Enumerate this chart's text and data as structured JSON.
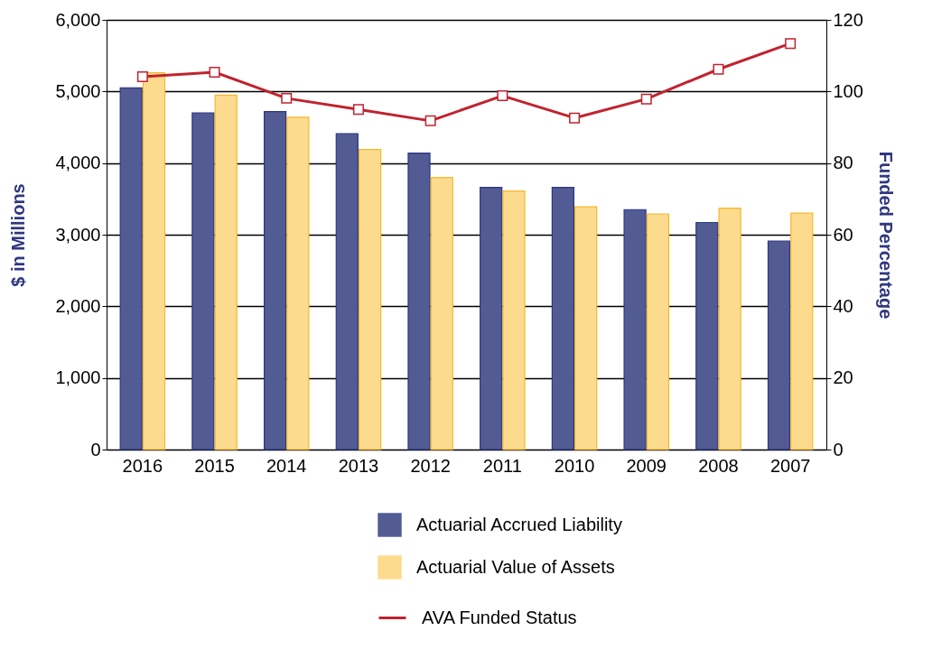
{
  "chart_data": {
    "type": "bar",
    "xlabel": null,
    "ylabel": "$ in Millions",
    "y2label": "Funded Percentage",
    "categories": [
      "2016",
      "2015",
      "2014",
      "2013",
      "2012",
      "2011",
      "2010",
      "2009",
      "2008",
      "2007"
    ],
    "series": [
      {
        "name": "Actuarial Accrued Liability",
        "color": "#525b94",
        "values": [
          5050,
          4700,
          4720,
          4410,
          4140,
          3660,
          3660,
          3350,
          3170,
          2910
        ]
      },
      {
        "name": "Actuarial Value of Assets",
        "color": "#fcdb8e",
        "values": [
          5260,
          4950,
          4640,
          4190,
          3800,
          3610,
          3390,
          3290,
          3370,
          3300
        ]
      },
      {
        "name": "AVA Funded Status",
        "type": "line",
        "axis": "y2",
        "color": "#c0232f",
        "marker": "square",
        "values": [
          104.1,
          105.4,
          98.1,
          95.0,
          91.8,
          98.8,
          92.6,
          97.9,
          106.2,
          113.4
        ]
      }
    ],
    "ylim": [
      0,
      6000
    ],
    "yticks": [
      {
        "value": 0,
        "label": "0"
      },
      {
        "value": 1000,
        "label": "1,000"
      },
      {
        "value": 2000,
        "label": "2,000"
      },
      {
        "value": 3000,
        "label": "3,000"
      },
      {
        "value": 4000,
        "label": "4,000"
      },
      {
        "value": 5000,
        "label": "5,000"
      },
      {
        "value": 6000,
        "label": "6,000"
      }
    ],
    "y2lim": [
      0,
      120
    ],
    "y2ticks": [
      0,
      20,
      40,
      60,
      80,
      100,
      120
    ],
    "grid": "y",
    "legend": "bottom"
  }
}
